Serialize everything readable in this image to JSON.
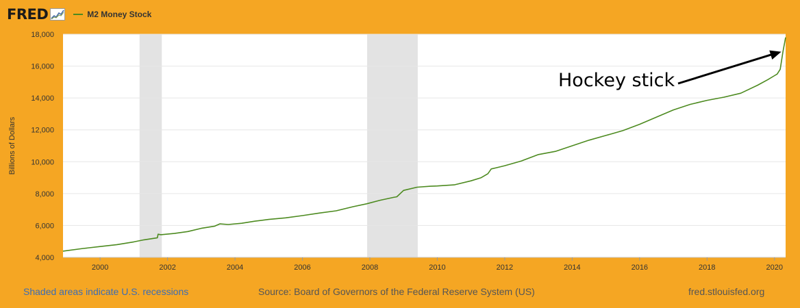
{
  "header": {
    "logo_text": "FRED",
    "series_label": "M2 Money Stock"
  },
  "footer": {
    "recession_note": "Shaded areas indicate U.S. recessions",
    "source": "Source: Board of Governors of the Federal Reserve System (US)",
    "site": "fred.stlouisfed.org"
  },
  "colors": {
    "background": "#f5a623",
    "plot_background": "#ffffff",
    "line": "#4c8a1f",
    "recession": "#e3e3e3",
    "grid": "#e6e6e6"
  },
  "chart_data": {
    "type": "line",
    "title": "M2 Money Stock",
    "xlabel": "",
    "ylabel": "Billions of Dollars",
    "xlim": [
      1998.9,
      2020.33
    ],
    "ylim": [
      4000,
      18000
    ],
    "x_ticks": [
      2000,
      2002,
      2004,
      2006,
      2008,
      2010,
      2012,
      2014,
      2016,
      2018,
      2020
    ],
    "y_ticks": [
      4000,
      6000,
      8000,
      10000,
      12000,
      14000,
      16000,
      18000
    ],
    "y_tick_labels": [
      "4,000",
      "6,000",
      "8,000",
      "10,000",
      "12,000",
      "14,000",
      "16,000",
      "18,000"
    ],
    "grid": true,
    "recessions": [
      [
        2001.17,
        2001.83
      ],
      [
        2007.92,
        2009.42
      ]
    ],
    "annotation": {
      "text": "Hockey stick",
      "x": 2020.2,
      "y": 16900
    },
    "series": [
      {
        "name": "M2 Money Stock",
        "x": [
          1998.9,
          1999.5,
          2000.0,
          2000.5,
          2001.0,
          2001.3,
          2001.7,
          2001.72,
          2001.8,
          2002.2,
          2002.6,
          2003.0,
          2003.4,
          2003.55,
          2003.8,
          2004.2,
          2004.6,
          2005.0,
          2005.5,
          2006.0,
          2006.5,
          2007.0,
          2007.5,
          2007.9,
          2008.3,
          2008.7,
          2008.8,
          2009.0,
          2009.4,
          2009.8,
          2010.0,
          2010.5,
          2011.0,
          2011.3,
          2011.5,
          2011.6,
          2011.75,
          2012.0,
          2012.5,
          2013.0,
          2013.5,
          2014.0,
          2014.5,
          2015.0,
          2015.5,
          2016.0,
          2016.5,
          2017.0,
          2017.5,
          2018.0,
          2018.5,
          2019.0,
          2019.5,
          2019.8,
          2020.0,
          2020.08,
          2020.17,
          2020.25,
          2020.33
        ],
        "values": [
          4390,
          4560,
          4680,
          4800,
          4970,
          5100,
          5230,
          5450,
          5420,
          5500,
          5620,
          5820,
          5960,
          6100,
          6060,
          6140,
          6270,
          6380,
          6480,
          6620,
          6780,
          6920,
          7180,
          7360,
          7580,
          7760,
          7800,
          8200,
          8400,
          8460,
          8480,
          8550,
          8800,
          9000,
          9250,
          9550,
          9620,
          9750,
          10050,
          10450,
          10650,
          11000,
          11350,
          11650,
          11950,
          12350,
          12800,
          13250,
          13600,
          13850,
          14050,
          14300,
          14800,
          15150,
          15400,
          15500,
          15800,
          16900,
          17800
        ]
      }
    ]
  }
}
